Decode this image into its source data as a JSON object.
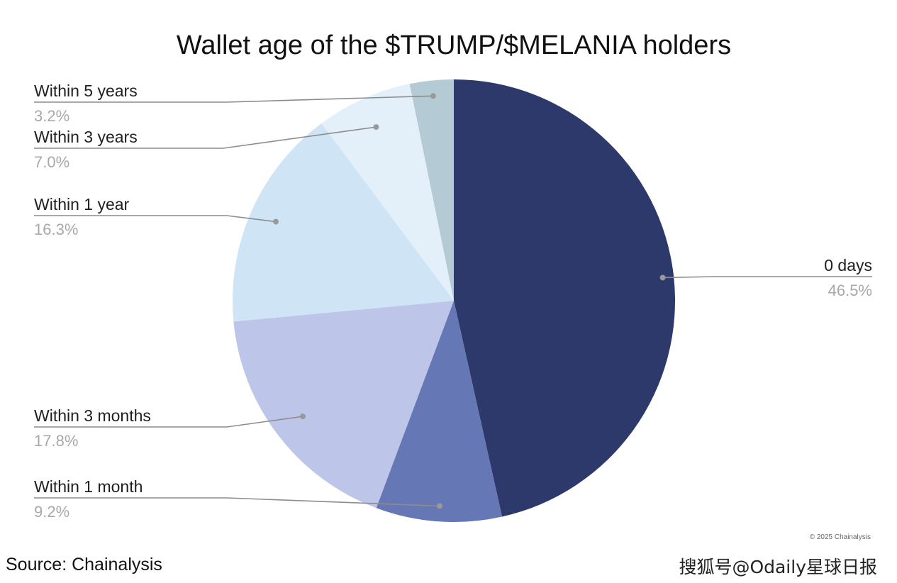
{
  "chart_data": {
    "type": "pie",
    "title": "Wallet age of the $TRUMP/$MELANIA holders",
    "start_angle_deg": 0,
    "direction": "clockwise",
    "slices": [
      {
        "label": "0 days",
        "value": 46.5,
        "pct_label": "46.5%",
        "color": "#2d386b"
      },
      {
        "label": "Within 1 month",
        "value": 9.2,
        "pct_label": "9.2%",
        "color": "#6677b6"
      },
      {
        "label": "Within 3 months",
        "value": 17.8,
        "pct_label": "17.8%",
        "color": "#bdc6e9"
      },
      {
        "label": "Within 1 year",
        "value": 16.3,
        "pct_label": "16.3%",
        "color": "#cfe4f5"
      },
      {
        "label": "Within 3 years",
        "value": 7.0,
        "pct_label": "7.0%",
        "color": "#e3f0f9"
      },
      {
        "label": "Within 5 years",
        "value": 3.2,
        "pct_label": "3.2%",
        "color": "#b4cbd6"
      }
    ],
    "copyright": "© 2025 Chainalysis"
  },
  "source_note": "Source: Chainalysis",
  "watermark": "搜狐号@Odaily星球日报"
}
